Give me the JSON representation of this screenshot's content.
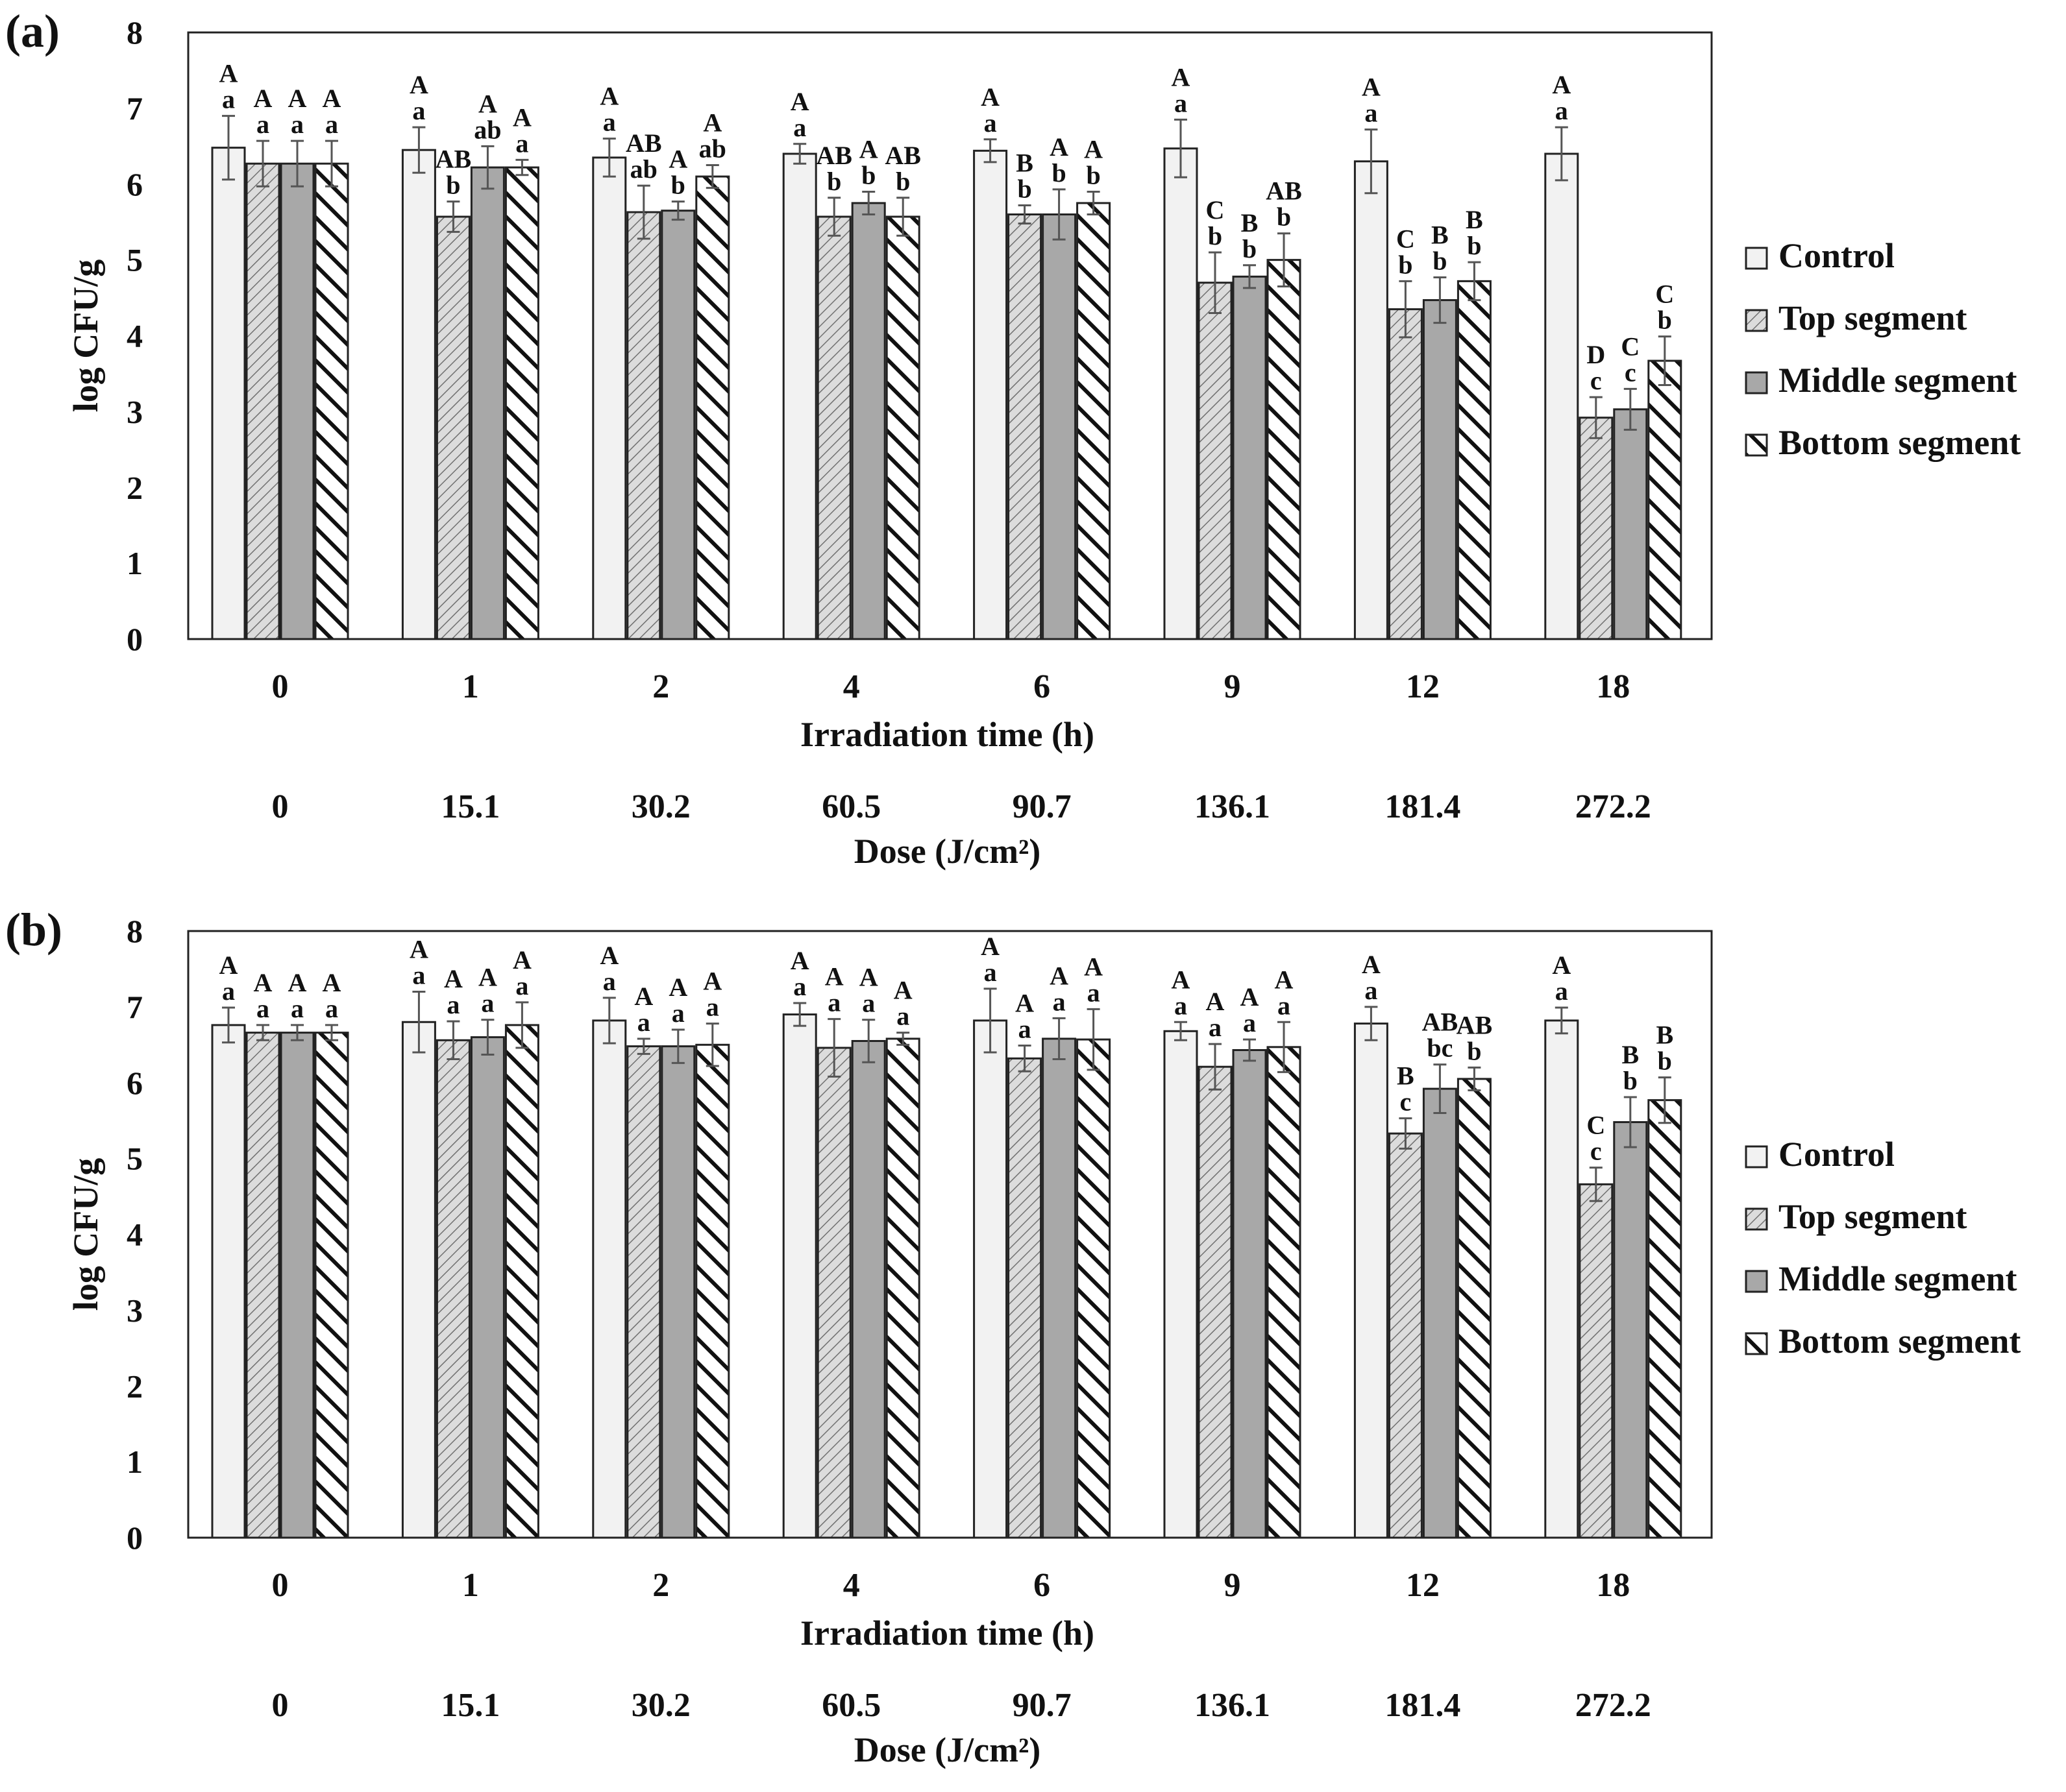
{
  "colors": {
    "control": "#f2f2f2",
    "top": "#d4d4d4",
    "middle": "#a8a8a8",
    "bottom": "#ffffff",
    "stroke": "#222222",
    "axis": "#555555"
  },
  "chart_data": [
    {
      "type": "bar",
      "panel_label": "(a)",
      "title": "",
      "ylabel": "log CFU/g",
      "ylim": [
        0,
        8
      ],
      "yticks": [
        "0",
        "1",
        "2",
        "3",
        "4",
        "5",
        "6",
        "7",
        "8"
      ],
      "grid": false,
      "legend_position": "right",
      "xlabel": "Irradiation time (h)",
      "categories": [
        "0",
        "1",
        "2",
        "4",
        "6",
        "9",
        "12",
        "18"
      ],
      "xlabel2": "Dose (J/cm²)",
      "categories2": [
        "0",
        "15.1",
        "30.2",
        "60.5",
        "90.7",
        "136.1",
        "181.4",
        "272.2"
      ],
      "series": [
        {
          "name": "Control",
          "key": "control",
          "values": [
            6.48,
            6.45,
            6.35,
            6.4,
            6.44,
            6.47,
            6.3,
            6.4
          ],
          "errors": [
            0.42,
            0.3,
            0.25,
            0.13,
            0.15,
            0.38,
            0.42,
            0.35
          ],
          "letters_upper": [
            "A",
            "A",
            "A",
            "A",
            "A",
            "A",
            "A",
            "A"
          ],
          "letters_lower": [
            "a",
            "a",
            "a",
            "a",
            "a",
            "a",
            "a",
            "a"
          ]
        },
        {
          "name": "Top segment",
          "key": "top",
          "values": [
            6.27,
            5.57,
            5.63,
            5.57,
            5.6,
            4.7,
            4.35,
            2.92
          ],
          "errors": [
            0.3,
            0.2,
            0.35,
            0.25,
            0.12,
            0.4,
            0.37,
            0.27
          ],
          "letters_upper": [
            "A",
            "AB",
            "AB",
            "AB",
            "B",
            "C",
            "C",
            "D"
          ],
          "letters_lower": [
            "a",
            "b",
            "ab",
            "b",
            "b",
            "b",
            "b",
            "c"
          ]
        },
        {
          "name": "Middle segment",
          "key": "middle",
          "values": [
            6.27,
            6.22,
            5.65,
            5.75,
            5.6,
            4.78,
            4.47,
            3.03
          ],
          "errors": [
            0.3,
            0.28,
            0.12,
            0.15,
            0.33,
            0.15,
            0.3,
            0.27
          ],
          "letters_upper": [
            "A",
            "A",
            "A",
            "A",
            "A",
            "B",
            "B",
            "C"
          ],
          "letters_lower": [
            "a",
            "ab",
            "b",
            "b",
            "b",
            "b",
            "b",
            "c"
          ]
        },
        {
          "name": "Bottom segment",
          "key": "bottom",
          "values": [
            6.27,
            6.22,
            6.1,
            5.57,
            5.75,
            5.0,
            4.72,
            3.67
          ],
          "errors": [
            0.3,
            0.1,
            0.15,
            0.25,
            0.15,
            0.35,
            0.25,
            0.32
          ],
          "letters_upper": [
            "A",
            "A",
            "A",
            "AB",
            "A",
            "AB",
            "B",
            "C"
          ],
          "letters_lower": [
            "a",
            "a",
            "ab",
            "b",
            "b",
            "b",
            "b",
            "b"
          ]
        }
      ]
    },
    {
      "type": "bar",
      "panel_label": "(b)",
      "title": "",
      "ylabel": "log CFU/g",
      "ylim": [
        0,
        8
      ],
      "yticks": [
        "0",
        "1",
        "2",
        "3",
        "4",
        "5",
        "6",
        "7",
        "8"
      ],
      "grid": false,
      "legend_position": "right",
      "xlabel": "Irradiation time (h)",
      "categories": [
        "0",
        "1",
        "2",
        "4",
        "6",
        "9",
        "12",
        "18"
      ],
      "xlabel2": "Dose (J/cm²)",
      "categories2": [
        "0",
        "15.1",
        "30.2",
        "60.5",
        "90.7",
        "136.1",
        "181.4",
        "272.2"
      ],
      "series": [
        {
          "name": "Control",
          "key": "control",
          "values": [
            6.76,
            6.8,
            6.82,
            6.9,
            6.82,
            6.68,
            6.78,
            6.82
          ],
          "errors": [
            0.23,
            0.4,
            0.3,
            0.15,
            0.42,
            0.12,
            0.22,
            0.17
          ],
          "letters_upper": [
            "A",
            "A",
            "A",
            "A",
            "A",
            "A",
            "A",
            "A"
          ],
          "letters_lower": [
            "a",
            "a",
            "a",
            "a",
            "a",
            "a",
            "a",
            "a"
          ]
        },
        {
          "name": "Top segment",
          "key": "top",
          "values": [
            6.66,
            6.56,
            6.48,
            6.46,
            6.32,
            6.21,
            5.33,
            4.66
          ],
          "errors": [
            0.1,
            0.25,
            0.1,
            0.38,
            0.17,
            0.3,
            0.2,
            0.22
          ],
          "letters_upper": [
            "A",
            "A",
            "A",
            "A",
            "A",
            "A",
            "B",
            "C"
          ],
          "letters_lower": [
            "a",
            "a",
            "a",
            "a",
            "a",
            "a",
            "c",
            "c"
          ]
        },
        {
          "name": "Middle segment",
          "key": "middle",
          "values": [
            6.66,
            6.6,
            6.48,
            6.55,
            6.58,
            6.43,
            5.92,
            5.48
          ],
          "errors": [
            0.1,
            0.23,
            0.22,
            0.28,
            0.27,
            0.14,
            0.32,
            0.33
          ],
          "letters_upper": [
            "A",
            "A",
            "A",
            "A",
            "A",
            "A",
            "AB",
            "B"
          ],
          "letters_lower": [
            "a",
            "a",
            "a",
            "a",
            "a",
            "a",
            "bc",
            "b"
          ]
        },
        {
          "name": "Bottom segment",
          "key": "bottom",
          "values": [
            6.66,
            6.76,
            6.5,
            6.58,
            6.57,
            6.47,
            6.05,
            5.77
          ],
          "errors": [
            0.1,
            0.3,
            0.28,
            0.08,
            0.4,
            0.33,
            0.15,
            0.3
          ],
          "letters_upper": [
            "A",
            "A",
            "A",
            "A",
            "A",
            "A",
            "AB",
            "B"
          ],
          "letters_lower": [
            "a",
            "a",
            "a",
            "a",
            "a",
            "a",
            "b",
            "b"
          ]
        }
      ]
    }
  ]
}
